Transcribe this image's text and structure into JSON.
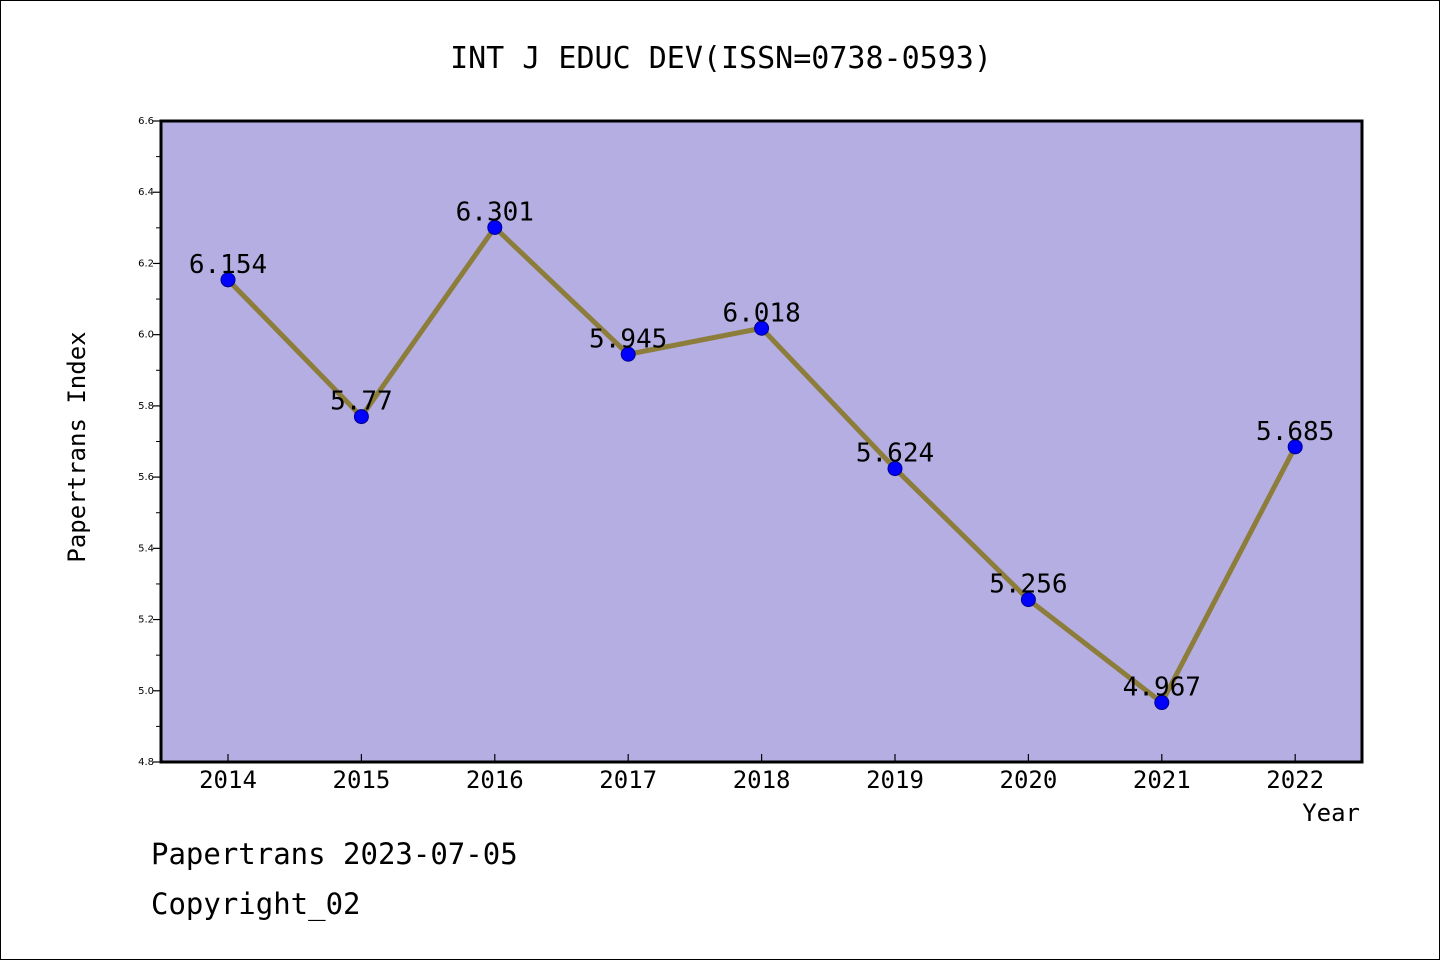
{
  "colors": {
    "plot_background": "#b5aee2",
    "line": "#8c7d3a",
    "marker_fill": "#0000ff",
    "marker_stroke": "#00008b",
    "axis": "#000000"
  },
  "chart_data": {
    "type": "line",
    "title": "INT J EDUC DEV(ISSN=0738-0593)",
    "xlabel": "Year",
    "ylabel": "Papertrans Index",
    "categories": [
      "2014",
      "2015",
      "2016",
      "2017",
      "2018",
      "2019",
      "2020",
      "2021",
      "2022"
    ],
    "series": [
      {
        "values": [
          6.154,
          5.77,
          6.301,
          5.945,
          6.018,
          5.624,
          5.256,
          4.967,
          5.685
        ],
        "labels": [
          "6.154",
          "5.77",
          "6.301",
          "5.945",
          "6.018",
          "5.624",
          "5.256",
          "4.967",
          "5.685"
        ]
      }
    ],
    "ylim": [
      4.8,
      6.6
    ],
    "yticks": [
      "4.8",
      "5.0",
      "5.2",
      "5.4",
      "5.6",
      "5.8",
      "6.0",
      "6.2",
      "6.4",
      "6.6"
    ],
    "grid": false,
    "legend": "none"
  },
  "footer": {
    "date_line": "Papertrans 2023-07-05",
    "copyright_line": "Copyright_02"
  }
}
